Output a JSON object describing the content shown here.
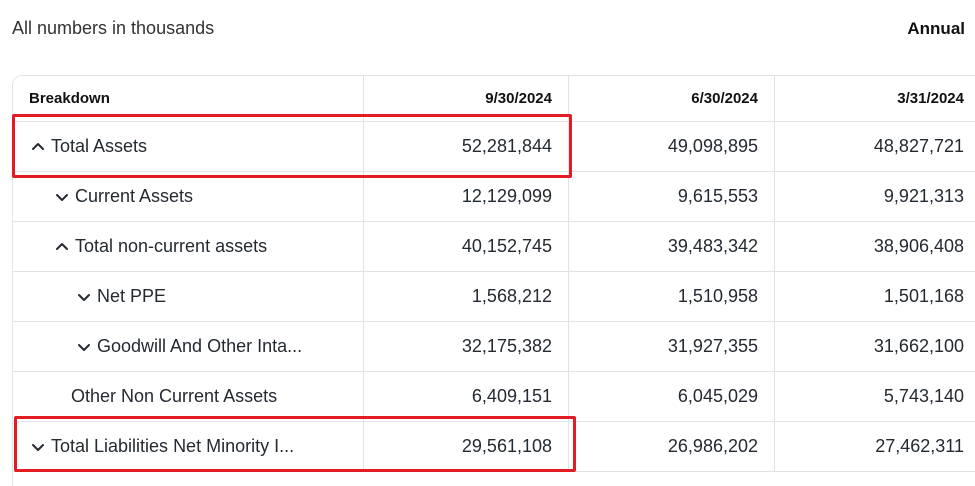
{
  "header": {
    "note": "All numbers in thousands",
    "period_toggle": "Annual"
  },
  "table": {
    "columns": [
      "Breakdown",
      "9/30/2024",
      "6/30/2024",
      "3/31/2024"
    ],
    "rows": [
      {
        "label": "Total Assets",
        "expand": "up",
        "values": [
          "52,281,844",
          "49,098,895",
          "48,827,721"
        ],
        "highlighted": true
      },
      {
        "label": "Current Assets",
        "expand": "down",
        "values": [
          "12,129,099",
          "9,615,553",
          "9,921,313"
        ]
      },
      {
        "label": "Total non-current assets",
        "expand": "up",
        "values": [
          "40,152,745",
          "39,483,342",
          "38,906,408"
        ]
      },
      {
        "label": "Net PPE",
        "expand": "down",
        "values": [
          "1,568,212",
          "1,510,958",
          "1,501,168"
        ]
      },
      {
        "label": "Goodwill And Other Inta...",
        "expand": "down",
        "values": [
          "32,175,382",
          "31,927,355",
          "31,662,100"
        ]
      },
      {
        "label": "Other Non Current Assets",
        "expand": "none",
        "values": [
          "6,409,151",
          "6,045,029",
          "5,743,140"
        ]
      },
      {
        "label": "Total Liabilities Net Minority I...",
        "expand": "down",
        "values": [
          "29,561,108",
          "26,986,202",
          "27,462,311"
        ],
        "highlighted": true
      }
    ]
  },
  "colors": {
    "highlight_border": "#e31b23",
    "grid_line": "#e0e4e9",
    "text": "#232a31"
  },
  "icons": {
    "expanded": "chevron-up-icon",
    "collapsed": "chevron-down-icon"
  }
}
